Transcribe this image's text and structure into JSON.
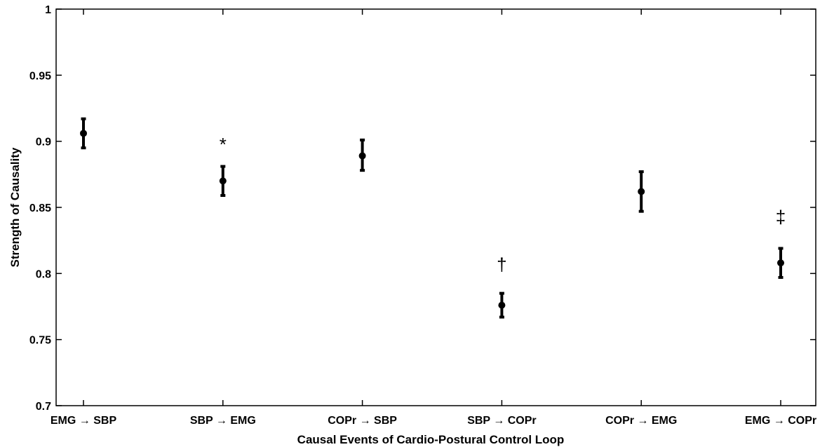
{
  "chart_data": {
    "type": "scatter",
    "title": "",
    "xlabel": "Causal Events of Cardio-Postural Control Loop",
    "ylabel": "Strength of Causality",
    "ylim": [
      0.7,
      1.0
    ],
    "yticks": [
      "0.7",
      "0.75",
      "0.8",
      "0.85",
      "0.9",
      "0.95",
      "1"
    ],
    "grid": false,
    "categories": [
      "EMG → SBP",
      "SBP → EMG",
      "COPr → SBP",
      "SBP → COPr",
      "COPr → EMG",
      "EMG → COPr"
    ],
    "values": [
      0.906,
      0.87,
      0.889,
      0.776,
      0.862,
      0.808
    ],
    "error_low": [
      0.895,
      0.859,
      0.878,
      0.767,
      0.847,
      0.797
    ],
    "error_high": [
      0.917,
      0.881,
      0.901,
      0.785,
      0.877,
      0.819
    ],
    "annotations": [
      {
        "category_index": 1,
        "text": "*",
        "y": 0.893
      },
      {
        "category_index": 3,
        "text": "†",
        "y": 0.802
      },
      {
        "category_index": 5,
        "text": "‡",
        "y": 0.838
      }
    ],
    "colors": {
      "markers": "#000000",
      "axes": "#000000",
      "background": "#ffffff"
    }
  }
}
